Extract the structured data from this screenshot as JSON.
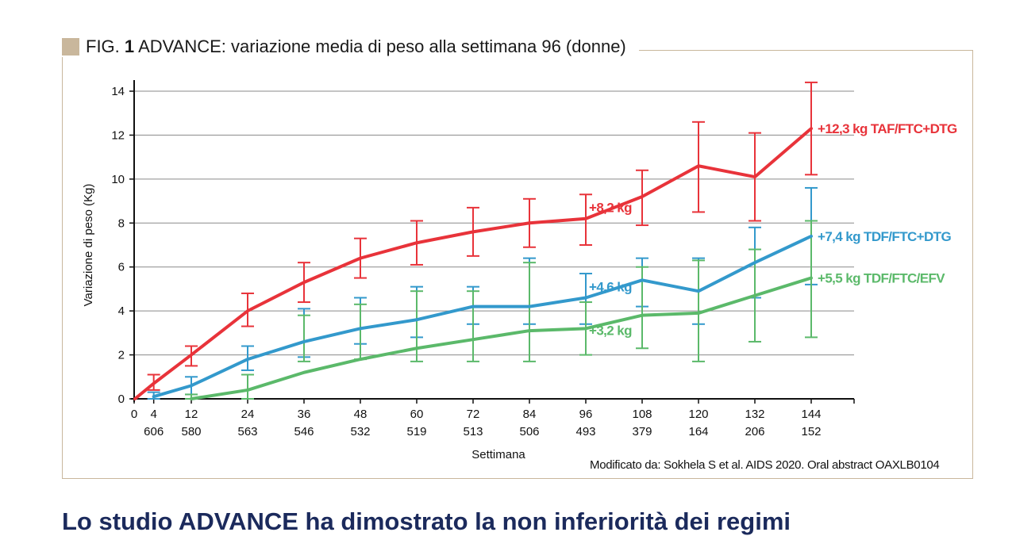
{
  "figure": {
    "label_prefix": "FIG.",
    "label_number": "1",
    "title": "ADVANCE: variazione media di peso alla settimana 96 (donne)",
    "source": "Modificato da: Sokhela S et al. AIDS 2020. Oral abstract OAXLB0104"
  },
  "body_heading": "Lo studio ADVANCE ha dimostrato la non inferiorità dei regimi",
  "chart_data": {
    "type": "line",
    "title": "ADVANCE: variazione media di peso alla settimana 96 (donne)",
    "xlabel": "Settimana",
    "ylabel": "Variazione di peso (Kg)",
    "xlim": [
      0,
      150
    ],
    "ylim": [
      0,
      14
    ],
    "xticks": [
      0,
      4,
      12,
      24,
      36,
      48,
      60,
      72,
      84,
      96,
      108,
      120,
      132,
      144
    ],
    "yticks": [
      0,
      2,
      4,
      6,
      8,
      10,
      12,
      14
    ],
    "n_at_risk_weeks": [
      4,
      12,
      24,
      36,
      48,
      60,
      72,
      84,
      96,
      108,
      120,
      132,
      144
    ],
    "n_at_risk": [
      "606",
      "580",
      "563",
      "546",
      "532",
      "519",
      "513",
      "506",
      "493",
      "379",
      "164",
      "206",
      "152"
    ],
    "grid": "horizontal",
    "series": [
      {
        "name": "TAF/FTC+DTG",
        "color": "#e8333a",
        "x": [
          0,
          4,
          12,
          24,
          36,
          48,
          60,
          72,
          84,
          96,
          108,
          120,
          132,
          144
        ],
        "y": [
          0,
          0.7,
          2.0,
          4.0,
          5.3,
          6.4,
          7.1,
          7.6,
          8.0,
          8.2,
          9.2,
          10.6,
          10.1,
          12.3
        ],
        "err_low": [
          null,
          0.4,
          1.5,
          3.3,
          4.4,
          5.5,
          6.1,
          6.5,
          6.9,
          7.0,
          7.9,
          8.5,
          8.1,
          10.2
        ],
        "err_high": [
          null,
          1.1,
          2.4,
          4.8,
          6.2,
          7.3,
          8.1,
          8.7,
          9.1,
          9.3,
          10.4,
          12.6,
          12.1,
          14.4
        ],
        "annotations": [
          {
            "x": 96,
            "y": 8.2,
            "text": "+8,2 kg"
          },
          {
            "x": 144,
            "y": 12.3,
            "text": "+12,3 kg TAF/FTC+DTG"
          }
        ]
      },
      {
        "name": "TDF/FTC+DTG",
        "color": "#3399cc",
        "x": [
          4,
          12,
          24,
          36,
          48,
          60,
          72,
          84,
          96,
          108,
          120,
          132,
          144
        ],
        "y": [
          0.1,
          0.6,
          1.8,
          2.6,
          3.2,
          3.6,
          4.2,
          4.2,
          4.6,
          5.4,
          4.9,
          6.2,
          7.4
        ],
        "err_low": [
          0,
          0.2,
          1.3,
          1.9,
          2.5,
          2.8,
          3.4,
          3.4,
          3.4,
          4.2,
          3.4,
          4.6,
          5.2
        ],
        "err_high": [
          0.3,
          1.0,
          2.4,
          4.1,
          4.6,
          5.1,
          5.1,
          6.4,
          5.7,
          6.4,
          6.4,
          7.8,
          9.6
        ],
        "annotations": [
          {
            "x": 96,
            "y": 4.6,
            "text": "+4,6 kg"
          },
          {
            "x": 144,
            "y": 7.4,
            "text": "+7,4 kg TDF/FTC+DTG"
          }
        ]
      },
      {
        "name": "TDF/FTC/EFV",
        "color": "#5bb96a",
        "x": [
          12,
          24,
          36,
          48,
          60,
          72,
          84,
          96,
          108,
          120,
          132,
          144
        ],
        "y": [
          0,
          0.4,
          1.2,
          1.8,
          2.3,
          2.7,
          3.1,
          3.2,
          3.8,
          3.9,
          4.7,
          5.5
        ],
        "err_low": [
          0,
          0,
          1.7,
          1.8,
          1.7,
          1.7,
          1.7,
          2.0,
          2.3,
          1.7,
          2.6,
          2.8
        ],
        "err_high": [
          0.2,
          1.1,
          3.8,
          4.3,
          4.9,
          4.9,
          6.2,
          4.4,
          6.0,
          6.3,
          6.8,
          8.1
        ],
        "annotations": [
          {
            "x": 96,
            "y": 3.2,
            "text": "+3,2 kg"
          },
          {
            "x": 144,
            "y": 5.5,
            "text": "+5,5 kg TDF/FTC/EFV"
          }
        ]
      }
    ]
  }
}
